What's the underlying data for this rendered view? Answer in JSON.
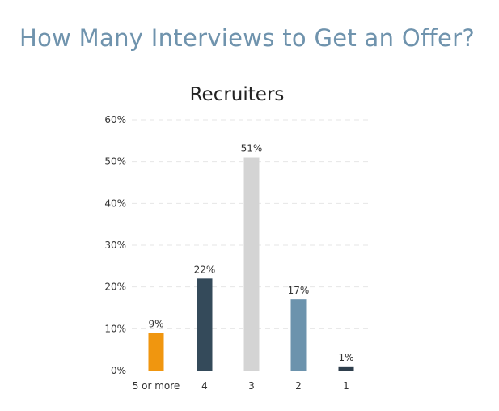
{
  "page": {
    "title": "How Many Interviews to Get an Offer?"
  },
  "chart_data": {
    "type": "bar",
    "title": "Recruiters",
    "xlabel": "",
    "ylabel": "",
    "categories": [
      "5 or more",
      "4",
      "3",
      "2",
      "1"
    ],
    "values": [
      9,
      22,
      51,
      17,
      1
    ],
    "value_labels": [
      "9%",
      "22%",
      "51%",
      "17%",
      "1%"
    ],
    "colors": [
      "#f0960f",
      "#344a5a",
      "#d4d4d4",
      "#6c93ad",
      "#2e3e4c"
    ],
    "ylim": [
      0,
      60
    ],
    "yticks": [
      0,
      10,
      20,
      30,
      40,
      50,
      60
    ],
    "ytick_labels": [
      "0%",
      "10%",
      "20%",
      "30%",
      "40%",
      "50%",
      "60%"
    ],
    "grid": true,
    "legend": "none"
  }
}
